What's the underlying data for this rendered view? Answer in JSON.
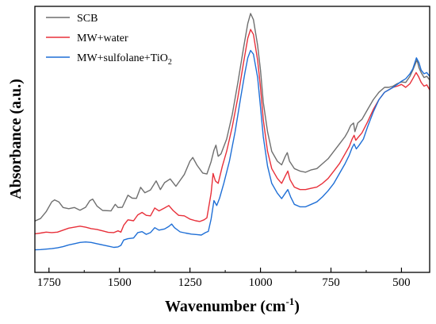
{
  "chart_data": {
    "type": "line",
    "xlabel": "Wavenumber (cm",
    "xlabel_sup": "-1",
    "xlabel_close": ")",
    "ylabel": "Absorbance (a.u.)",
    "xlim": [
      1800,
      400
    ],
    "x_reversed": true,
    "y_ticks_shown": false,
    "ylim": [
      0,
      1
    ],
    "grid": false,
    "legend_position": "top-left",
    "xticks": [
      {
        "value": 1750,
        "label": "1750"
      },
      {
        "value": 1500,
        "label": "1500"
      },
      {
        "value": 1250,
        "label": "1250"
      },
      {
        "value": 1000,
        "label": "1000"
      },
      {
        "value": 750,
        "label": "750"
      },
      {
        "value": 500,
        "label": "500"
      }
    ],
    "series": [
      {
        "name": "SCB",
        "name_sub": "",
        "color": "#6f6f6f",
        "points": [
          [
            1800,
            0.157
          ],
          [
            1780,
            0.167
          ],
          [
            1760,
            0.195
          ],
          [
            1740,
            0.235
          ],
          [
            1730,
            0.243
          ],
          [
            1715,
            0.235
          ],
          [
            1700,
            0.212
          ],
          [
            1680,
            0.207
          ],
          [
            1660,
            0.212
          ],
          [
            1640,
            0.201
          ],
          [
            1620,
            0.213
          ],
          [
            1605,
            0.24
          ],
          [
            1595,
            0.246
          ],
          [
            1580,
            0.218
          ],
          [
            1560,
            0.2
          ],
          [
            1530,
            0.198
          ],
          [
            1515,
            0.225
          ],
          [
            1505,
            0.212
          ],
          [
            1490,
            0.213
          ],
          [
            1470,
            0.262
          ],
          [
            1455,
            0.25
          ],
          [
            1440,
            0.249
          ],
          [
            1425,
            0.294
          ],
          [
            1410,
            0.272
          ],
          [
            1390,
            0.283
          ],
          [
            1370,
            0.32
          ],
          [
            1355,
            0.285
          ],
          [
            1340,
            0.313
          ],
          [
            1320,
            0.328
          ],
          [
            1300,
            0.298
          ],
          [
            1270,
            0.346
          ],
          [
            1250,
            0.4
          ],
          [
            1240,
            0.415
          ],
          [
            1225,
            0.384
          ],
          [
            1205,
            0.352
          ],
          [
            1190,
            0.348
          ],
          [
            1175,
            0.398
          ],
          [
            1165,
            0.445
          ],
          [
            1158,
            0.465
          ],
          [
            1150,
            0.42
          ],
          [
            1140,
            0.43
          ],
          [
            1120,
            0.49
          ],
          [
            1100,
            0.59
          ],
          [
            1080,
            0.72
          ],
          [
            1060,
            0.86
          ],
          [
            1045,
            0.96
          ],
          [
            1035,
            1.0
          ],
          [
            1025,
            0.975
          ],
          [
            1010,
            0.87
          ],
          [
            1000,
            0.77
          ],
          [
            990,
            0.64
          ],
          [
            975,
            0.52
          ],
          [
            960,
            0.44
          ],
          [
            940,
            0.4
          ],
          [
            925,
            0.385
          ],
          [
            912,
            0.42
          ],
          [
            905,
            0.435
          ],
          [
            897,
            0.4
          ],
          [
            880,
            0.37
          ],
          [
            860,
            0.36
          ],
          [
            840,
            0.355
          ],
          [
            820,
            0.365
          ],
          [
            800,
            0.37
          ],
          [
            780,
            0.39
          ],
          [
            760,
            0.41
          ],
          [
            740,
            0.44
          ],
          [
            720,
            0.47
          ],
          [
            700,
            0.5
          ],
          [
            690,
            0.52
          ],
          [
            680,
            0.545
          ],
          [
            670,
            0.555
          ],
          [
            665,
            0.52
          ],
          [
            655,
            0.555
          ],
          [
            640,
            0.57
          ],
          [
            620,
            0.61
          ],
          [
            600,
            0.65
          ],
          [
            580,
            0.68
          ],
          [
            560,
            0.7
          ],
          [
            545,
            0.7
          ],
          [
            530,
            0.705
          ],
          [
            515,
            0.715
          ],
          [
            500,
            0.722
          ],
          [
            485,
            0.72
          ],
          [
            470,
            0.745
          ],
          [
            460,
            0.77
          ],
          [
            445,
            0.812
          ],
          [
            438,
            0.78
          ],
          [
            430,
            0.76
          ],
          [
            420,
            0.74
          ],
          [
            410,
            0.745
          ],
          [
            400,
            0.73
          ]
        ]
      },
      {
        "name": "MW+water",
        "name_sub": "",
        "color": "#e8303a",
        "points": [
          [
            1800,
            0.105
          ],
          [
            1780,
            0.108
          ],
          [
            1760,
            0.112
          ],
          [
            1740,
            0.11
          ],
          [
            1720,
            0.112
          ],
          [
            1700,
            0.12
          ],
          [
            1680,
            0.128
          ],
          [
            1660,
            0.132
          ],
          [
            1640,
            0.136
          ],
          [
            1620,
            0.132
          ],
          [
            1600,
            0.126
          ],
          [
            1580,
            0.123
          ],
          [
            1560,
            0.117
          ],
          [
            1540,
            0.111
          ],
          [
            1520,
            0.11
          ],
          [
            1505,
            0.117
          ],
          [
            1495,
            0.112
          ],
          [
            1485,
            0.14
          ],
          [
            1470,
            0.162
          ],
          [
            1450,
            0.158
          ],
          [
            1435,
            0.182
          ],
          [
            1420,
            0.192
          ],
          [
            1405,
            0.18
          ],
          [
            1390,
            0.178
          ],
          [
            1375,
            0.21
          ],
          [
            1360,
            0.198
          ],
          [
            1340,
            0.21
          ],
          [
            1325,
            0.22
          ],
          [
            1310,
            0.2
          ],
          [
            1290,
            0.18
          ],
          [
            1270,
            0.178
          ],
          [
            1250,
            0.165
          ],
          [
            1230,
            0.158
          ],
          [
            1215,
            0.155
          ],
          [
            1200,
            0.162
          ],
          [
            1190,
            0.17
          ],
          [
            1175,
            0.27
          ],
          [
            1168,
            0.35
          ],
          [
            1160,
            0.32
          ],
          [
            1150,
            0.31
          ],
          [
            1135,
            0.38
          ],
          [
            1120,
            0.44
          ],
          [
            1100,
            0.54
          ],
          [
            1080,
            0.66
          ],
          [
            1060,
            0.8
          ],
          [
            1045,
            0.9
          ],
          [
            1035,
            0.935
          ],
          [
            1025,
            0.915
          ],
          [
            1010,
            0.81
          ],
          [
            1000,
            0.7
          ],
          [
            990,
            0.57
          ],
          [
            975,
            0.44
          ],
          [
            960,
            0.37
          ],
          [
            940,
            0.33
          ],
          [
            925,
            0.31
          ],
          [
            912,
            0.34
          ],
          [
            903,
            0.36
          ],
          [
            895,
            0.325
          ],
          [
            880,
            0.295
          ],
          [
            860,
            0.285
          ],
          [
            840,
            0.285
          ],
          [
            820,
            0.29
          ],
          [
            800,
            0.295
          ],
          [
            780,
            0.31
          ],
          [
            760,
            0.33
          ],
          [
            740,
            0.36
          ],
          [
            720,
            0.39
          ],
          [
            700,
            0.43
          ],
          [
            685,
            0.46
          ],
          [
            675,
            0.49
          ],
          [
            668,
            0.505
          ],
          [
            662,
            0.485
          ],
          [
            655,
            0.495
          ],
          [
            640,
            0.515
          ],
          [
            620,
            0.56
          ],
          [
            600,
            0.61
          ],
          [
            580,
            0.65
          ],
          [
            560,
            0.68
          ],
          [
            545,
            0.69
          ],
          [
            530,
            0.7
          ],
          [
            515,
            0.705
          ],
          [
            500,
            0.712
          ],
          [
            485,
            0.7
          ],
          [
            470,
            0.715
          ],
          [
            460,
            0.735
          ],
          [
            448,
            0.76
          ],
          [
            440,
            0.745
          ],
          [
            430,
            0.72
          ],
          [
            420,
            0.705
          ],
          [
            410,
            0.71
          ],
          [
            400,
            0.69
          ]
        ]
      },
      {
        "name": "MW+sulfolane+TiO",
        "name_sub": "2",
        "color": "#1f6fd6",
        "points": [
          [
            1800,
            0.04
          ],
          [
            1780,
            0.041
          ],
          [
            1760,
            0.043
          ],
          [
            1740,
            0.045
          ],
          [
            1720,
            0.048
          ],
          [
            1700,
            0.053
          ],
          [
            1680,
            0.06
          ],
          [
            1660,
            0.065
          ],
          [
            1640,
            0.07
          ],
          [
            1620,
            0.072
          ],
          [
            1600,
            0.07
          ],
          [
            1580,
            0.065
          ],
          [
            1560,
            0.06
          ],
          [
            1540,
            0.055
          ],
          [
            1520,
            0.05
          ],
          [
            1505,
            0.052
          ],
          [
            1495,
            0.058
          ],
          [
            1485,
            0.08
          ],
          [
            1470,
            0.085
          ],
          [
            1450,
            0.088
          ],
          [
            1435,
            0.11
          ],
          [
            1420,
            0.114
          ],
          [
            1405,
            0.103
          ],
          [
            1390,
            0.11
          ],
          [
            1375,
            0.13
          ],
          [
            1360,
            0.12
          ],
          [
            1340,
            0.125
          ],
          [
            1325,
            0.135
          ],
          [
            1315,
            0.145
          ],
          [
            1305,
            0.13
          ],
          [
            1285,
            0.113
          ],
          [
            1265,
            0.108
          ],
          [
            1245,
            0.104
          ],
          [
            1225,
            0.102
          ],
          [
            1210,
            0.1
          ],
          [
            1195,
            0.11
          ],
          [
            1185,
            0.115
          ],
          [
            1175,
            0.165
          ],
          [
            1165,
            0.24
          ],
          [
            1155,
            0.22
          ],
          [
            1145,
            0.25
          ],
          [
            1130,
            0.31
          ],
          [
            1110,
            0.4
          ],
          [
            1090,
            0.52
          ],
          [
            1070,
            0.66
          ],
          [
            1055,
            0.76
          ],
          [
            1045,
            0.82
          ],
          [
            1035,
            0.85
          ],
          [
            1025,
            0.835
          ],
          [
            1010,
            0.74
          ],
          [
            1000,
            0.62
          ],
          [
            990,
            0.5
          ],
          [
            975,
            0.38
          ],
          [
            960,
            0.31
          ],
          [
            940,
            0.27
          ],
          [
            925,
            0.248
          ],
          [
            912,
            0.27
          ],
          [
            903,
            0.285
          ],
          [
            893,
            0.255
          ],
          [
            880,
            0.225
          ],
          [
            860,
            0.215
          ],
          [
            840,
            0.215
          ],
          [
            820,
            0.225
          ],
          [
            800,
            0.235
          ],
          [
            780,
            0.255
          ],
          [
            760,
            0.28
          ],
          [
            740,
            0.31
          ],
          [
            720,
            0.35
          ],
          [
            700,
            0.39
          ],
          [
            685,
            0.425
          ],
          [
            675,
            0.455
          ],
          [
            668,
            0.47
          ],
          [
            660,
            0.45
          ],
          [
            650,
            0.465
          ],
          [
            635,
            0.49
          ],
          [
            620,
            0.54
          ],
          [
            600,
            0.6
          ],
          [
            580,
            0.65
          ],
          [
            560,
            0.68
          ],
          [
            545,
            0.69
          ],
          [
            530,
            0.7
          ],
          [
            515,
            0.712
          ],
          [
            500,
            0.725
          ],
          [
            485,
            0.735
          ],
          [
            470,
            0.755
          ],
          [
            460,
            0.775
          ],
          [
            447,
            0.82
          ],
          [
            438,
            0.8
          ],
          [
            430,
            0.77
          ],
          [
            420,
            0.755
          ],
          [
            410,
            0.76
          ],
          [
            400,
            0.745
          ]
        ]
      }
    ]
  }
}
